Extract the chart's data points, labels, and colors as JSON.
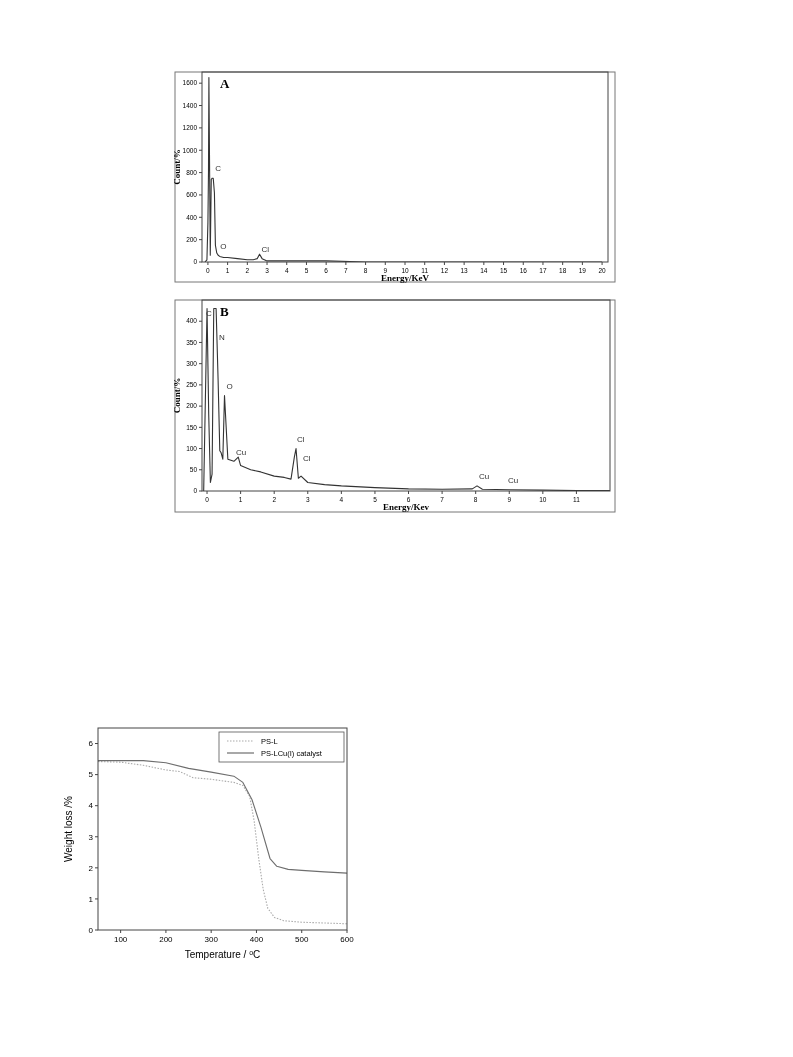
{
  "chart_data": [
    {
      "type": "line",
      "title": "A",
      "xlabel": "Energy/KeV",
      "ylabel": "Count/%",
      "xlim": [
        -0.3,
        20.3
      ],
      "ylim": [
        0,
        1700
      ],
      "xticks": [
        0,
        1,
        2,
        3,
        4,
        5,
        6,
        7,
        8,
        9,
        10,
        11,
        12,
        13,
        14,
        15,
        16,
        17,
        18,
        19,
        20
      ],
      "yticks": [
        0,
        200,
        400,
        600,
        800,
        1000,
        1200,
        1400,
        1600
      ],
      "series": [
        {
          "color": "#333333",
          "x": [
            -0.15,
            -0.05,
            0,
            0.03,
            0.05,
            0.08,
            0.12,
            0.17,
            0.22,
            0.27,
            0.33,
            0.38,
            0.45,
            0.52,
            0.6,
            0.8,
            1,
            1.5,
            2,
            2.3,
            2.5,
            2.62,
            2.75,
            3,
            4,
            5,
            6,
            8,
            10,
            15,
            20
          ],
          "values": [
            0,
            20,
            350,
            820,
            1650,
            960,
            60,
            740,
            750,
            750,
            620,
            150,
            80,
            60,
            50,
            40,
            40,
            30,
            20,
            20,
            30,
            70,
            30,
            10,
            10,
            10,
            10,
            0,
            0,
            0,
            0
          ]
        }
      ],
      "annotations": [
        {
          "text": "C",
          "x": 0.27,
          "y": 800
        },
        {
          "text": "O",
          "x": 0.52,
          "y": 100
        },
        {
          "text": "Cl",
          "x": 2.62,
          "y": 70
        }
      ]
    },
    {
      "type": "line",
      "title": "B",
      "xlabel": "Energy/Kev",
      "ylabel": "Count/%",
      "xlim": [
        -0.15,
        12
      ],
      "ylim": [
        0,
        450
      ],
      "xticks": [
        0,
        1,
        2,
        3,
        4,
        5,
        6,
        7,
        8,
        9,
        10,
        11
      ],
      "yticks": [
        0,
        50,
        100,
        150,
        200,
        250,
        300,
        350,
        400
      ],
      "series": [
        {
          "color": "#333333",
          "x": [
            -0.1,
            0,
            0.05,
            0.1,
            0.15,
            0.2,
            0.27,
            0.33,
            0.38,
            0.42,
            0.47,
            0.52,
            0.57,
            0.62,
            0.8,
            0.93,
            1,
            1.3,
            1.6,
            2,
            2.3,
            2.5,
            2.6,
            2.65,
            2.72,
            2.8,
            3,
            3.5,
            4,
            5,
            6,
            7,
            7.9,
            8.04,
            8.2,
            9,
            10,
            11,
            12
          ],
          "values": [
            0,
            430,
            180,
            20,
            40,
            430,
            430,
            260,
            95,
            90,
            75,
            225,
            150,
            75,
            70,
            80,
            60,
            50,
            45,
            35,
            32,
            28,
            80,
            100,
            30,
            35,
            20,
            15,
            12,
            8,
            5,
            4,
            5,
            12,
            4,
            3,
            2,
            1,
            1
          ]
        }
      ],
      "annotations": [
        {
          "text": "C",
          "x": 0.2,
          "y": 430
        },
        {
          "text": "N",
          "x": 0.3,
          "y": 350
        },
        {
          "text": "O",
          "x": 0.52,
          "y": 235
        },
        {
          "text": "Cu",
          "x": 0.8,
          "y": 80
        },
        {
          "text": "Cl",
          "x": 2.62,
          "y": 110
        },
        {
          "text": "Cl",
          "x": 2.8,
          "y": 65
        },
        {
          "text": "Cu",
          "x": 8.04,
          "y": 23
        },
        {
          "text": "Cu",
          "x": 8.9,
          "y": 15
        }
      ]
    },
    {
      "type": "line",
      "xlabel": "Temperature / $^{o}$C",
      "ylabel": "Weight loss /%",
      "xlim": [
        50,
        600
      ],
      "ylim": [
        0,
        6.5
      ],
      "xticks": [
        100,
        200,
        300,
        400,
        500,
        600
      ],
      "yticks": [
        0,
        1,
        2,
        3,
        4,
        5,
        6
      ],
      "legend": "top right",
      "series": [
        {
          "name": "PS-L",
          "color": "#aaaaaa",
          "line_style": "dotted",
          "x": [
            50,
            100,
            150,
            200,
            230,
            260,
            300,
            350,
            370,
            385,
            395,
            405,
            415,
            425,
            440,
            460,
            500,
            600
          ],
          "values": [
            5.42,
            5.4,
            5.3,
            5.15,
            5.1,
            4.9,
            4.85,
            4.75,
            4.65,
            4.3,
            3.5,
            2.3,
            1.3,
            0.7,
            0.4,
            0.3,
            0.25,
            0.2
          ]
        },
        {
          "name": "PS-LCu(I) catalyst",
          "color": "#6e6e6e",
          "line_style": "solid",
          "x": [
            50,
            100,
            150,
            200,
            250,
            300,
            350,
            370,
            390,
            410,
            420,
            430,
            445,
            470,
            500,
            550,
            600
          ],
          "values": [
            5.45,
            5.45,
            5.45,
            5.38,
            5.2,
            5.08,
            4.95,
            4.75,
            4.2,
            3.3,
            2.8,
            2.3,
            2.05,
            1.95,
            1.92,
            1.87,
            1.83
          ]
        }
      ]
    }
  ]
}
